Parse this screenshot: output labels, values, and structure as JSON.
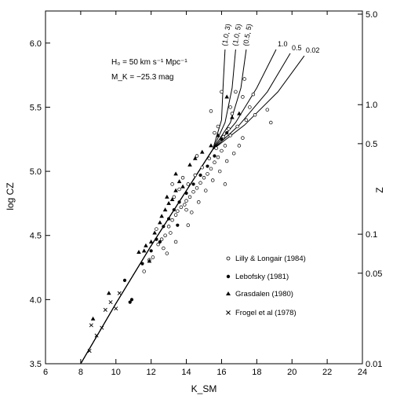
{
  "chart_data": {
    "type": "scatter",
    "title": "",
    "xlabel": "K_SM",
    "ylabel": "log CZ",
    "y2label": "Z",
    "xlim": [
      6,
      24
    ],
    "ylim": [
      3.5,
      6.25
    ],
    "x_ticks": [
      6,
      8,
      10,
      12,
      14,
      16,
      18,
      20,
      22,
      24
    ],
    "y_ticks": [
      3.5,
      4.0,
      4.5,
      5.0,
      5.5,
      6.0
    ],
    "y_tick_labels": [
      "3.5",
      "4.0",
      "4.5",
      "5.0",
      "5.5",
      "6.0"
    ],
    "z_ticks": [
      {
        "label": "5.0",
        "z": 5.0
      },
      {
        "label": "1.0",
        "z": 1.0
      },
      {
        "label": "0.5",
        "z": 0.5
      },
      {
        "label": "0.1",
        "z": 0.1
      },
      {
        "label": "0.05",
        "z": 0.05
      },
      {
        "label": "0.01",
        "z": 0.01
      }
    ],
    "grid": false,
    "legend_position": "lower-right",
    "annotations": [
      {
        "text": "H₀ = 50 km s⁻¹ Mpc⁻¹"
      },
      {
        "text": "M_K = −25.3 mag"
      }
    ],
    "legend": [
      {
        "marker": "open-circle",
        "label": "Lilly & Longair (1984)"
      },
      {
        "marker": "filled-circle",
        "label": "Lebofsky (1981)"
      },
      {
        "marker": "filled-triangle",
        "label": "Grasdalen (1980)"
      },
      {
        "marker": "cross",
        "label": "Frogel et al (1978)"
      }
    ],
    "models": [
      {
        "label": "(1.0, 3)",
        "points": [
          [
            8.0,
            3.5
          ],
          [
            10,
            3.97
          ],
          [
            12,
            4.42
          ],
          [
            14,
            4.85
          ],
          [
            15.5,
            5.17
          ],
          [
            16.0,
            5.4
          ],
          [
            16.1,
            5.7
          ],
          [
            16.2,
            5.95
          ]
        ]
      },
      {
        "label": "(1.0, 5)",
        "points": [
          [
            8.0,
            3.5
          ],
          [
            10,
            3.97
          ],
          [
            12,
            4.42
          ],
          [
            14,
            4.85
          ],
          [
            15.5,
            5.17
          ],
          [
            16.2,
            5.38
          ],
          [
            16.6,
            5.65
          ],
          [
            16.8,
            5.95
          ]
        ]
      },
      {
        "label": "(0.5, 5)",
        "points": [
          [
            8.0,
            3.5
          ],
          [
            10,
            3.97
          ],
          [
            12,
            4.42
          ],
          [
            14,
            4.85
          ],
          [
            15.5,
            5.17
          ],
          [
            16.5,
            5.38
          ],
          [
            17.1,
            5.65
          ],
          [
            17.4,
            5.95
          ]
        ]
      },
      {
        "label": "1.0",
        "points": [
          [
            8.0,
            3.5
          ],
          [
            10,
            3.97
          ],
          [
            12,
            4.42
          ],
          [
            14,
            4.85
          ],
          [
            15.5,
            5.17
          ],
          [
            16.8,
            5.38
          ],
          [
            18.0,
            5.65
          ],
          [
            19.1,
            5.95
          ]
        ]
      },
      {
        "label": "0.5",
        "points": [
          [
            8.0,
            3.5
          ],
          [
            10,
            3.97
          ],
          [
            12,
            4.42
          ],
          [
            14,
            4.85
          ],
          [
            15.5,
            5.17
          ],
          [
            17.0,
            5.36
          ],
          [
            18.6,
            5.62
          ],
          [
            19.9,
            5.92
          ]
        ]
      },
      {
        "label": "0.02",
        "points": [
          [
            8.0,
            3.5
          ],
          [
            10,
            3.97
          ],
          [
            12,
            4.42
          ],
          [
            14,
            4.85
          ],
          [
            15.5,
            5.17
          ],
          [
            17.3,
            5.36
          ],
          [
            19.2,
            5.62
          ],
          [
            20.7,
            5.9
          ]
        ]
      }
    ],
    "series": [
      {
        "name": "Lilly & Longair (1984)",
        "marker": "open-circle",
        "points": [
          [
            11.6,
            4.22
          ],
          [
            11.9,
            4.31
          ],
          [
            12.1,
            4.33
          ],
          [
            12.4,
            4.43
          ],
          [
            12.6,
            4.47
          ],
          [
            12.8,
            4.5
          ],
          [
            13.0,
            4.57
          ],
          [
            13.2,
            4.62
          ],
          [
            13.4,
            4.66
          ],
          [
            13.5,
            4.69
          ],
          [
            13.7,
            4.72
          ],
          [
            13.9,
            4.74
          ],
          [
            14.0,
            4.77
          ],
          [
            14.2,
            4.8
          ],
          [
            14.4,
            4.84
          ],
          [
            14.6,
            4.87
          ],
          [
            14.8,
            4.91
          ],
          [
            15.0,
            4.95
          ],
          [
            15.2,
            4.98
          ],
          [
            15.4,
            5.02
          ],
          [
            15.6,
            5.07
          ],
          [
            15.8,
            5.11
          ],
          [
            16.0,
            5.16
          ],
          [
            16.2,
            5.2
          ],
          [
            16.5,
            5.28
          ],
          [
            13.3,
            4.8
          ],
          [
            13.6,
            4.86
          ],
          [
            14.1,
            4.9
          ],
          [
            14.5,
            4.97
          ],
          [
            14.9,
            5.03
          ],
          [
            15.3,
            5.1
          ],
          [
            15.7,
            5.18
          ],
          [
            16.1,
            5.27
          ],
          [
            16.4,
            5.33
          ],
          [
            12.7,
            4.4
          ],
          [
            13.1,
            4.52
          ],
          [
            14.3,
            4.68
          ],
          [
            14.7,
            4.76
          ],
          [
            15.1,
            4.85
          ],
          [
            15.5,
            4.93
          ],
          [
            15.9,
            5.0
          ],
          [
            16.3,
            5.08
          ],
          [
            16.7,
            5.14
          ],
          [
            17.0,
            5.2
          ],
          [
            17.2,
            5.26
          ],
          [
            16.9,
            5.35
          ],
          [
            17.4,
            5.4
          ],
          [
            17.6,
            5.5
          ],
          [
            17.2,
            5.58
          ],
          [
            17.9,
            5.44
          ],
          [
            16.6,
            5.45
          ],
          [
            16.8,
            5.62
          ],
          [
            17.3,
            5.72
          ],
          [
            15.4,
            5.47
          ],
          [
            15.6,
            5.3
          ],
          [
            16.2,
            4.9
          ],
          [
            14.0,
            4.7
          ],
          [
            13.8,
            4.95
          ],
          [
            14.6,
            5.12
          ],
          [
            13.4,
            4.45
          ],
          [
            12.9,
            4.36
          ],
          [
            15.8,
            5.35
          ],
          [
            16.5,
            5.5
          ],
          [
            17.8,
            5.6
          ],
          [
            18.6,
            5.48
          ],
          [
            18.8,
            5.38
          ],
          [
            16.0,
            5.62
          ],
          [
            13.2,
            4.9
          ],
          [
            12.3,
            4.55
          ],
          [
            14.1,
            4.58
          ]
        ]
      },
      {
        "name": "Lebofsky (1981)",
        "marker": "filled-circle",
        "points": [
          [
            10.5,
            4.15
          ],
          [
            10.8,
            3.98
          ],
          [
            10.9,
            4.0
          ],
          [
            11.5,
            4.28
          ],
          [
            12.0,
            4.38
          ],
          [
            12.3,
            4.47
          ],
          [
            12.7,
            4.57
          ],
          [
            13.0,
            4.63
          ],
          [
            13.3,
            4.7
          ],
          [
            13.6,
            4.76
          ],
          [
            14.0,
            4.83
          ],
          [
            14.4,
            4.9
          ],
          [
            14.8,
            4.97
          ],
          [
            15.2,
            5.04
          ],
          [
            15.6,
            5.12
          ],
          [
            16.0,
            5.25
          ],
          [
            16.3,
            5.3
          ],
          [
            13.5,
            4.58
          ],
          [
            12.5,
            4.45
          ]
        ]
      },
      {
        "name": "Grasdalen (1980)",
        "marker": "filled-triangle",
        "points": [
          [
            8.7,
            3.85
          ],
          [
            9.6,
            4.05
          ],
          [
            11.3,
            4.37
          ],
          [
            11.6,
            4.38
          ],
          [
            11.7,
            4.42
          ],
          [
            12.0,
            4.45
          ],
          [
            12.2,
            4.52
          ],
          [
            12.5,
            4.6
          ],
          [
            12.8,
            4.7
          ],
          [
            13.0,
            4.75
          ],
          [
            13.2,
            4.78
          ],
          [
            13.4,
            4.85
          ],
          [
            13.6,
            4.92
          ],
          [
            14.2,
            5.05
          ],
          [
            14.5,
            5.1
          ],
          [
            14.9,
            5.15
          ],
          [
            12.9,
            4.8
          ],
          [
            13.4,
            4.98
          ],
          [
            15.4,
            5.2
          ],
          [
            15.8,
            5.28
          ],
          [
            16.3,
            5.58
          ],
          [
            16.6,
            5.42
          ],
          [
            17.0,
            5.45
          ],
          [
            11.9,
            4.3
          ],
          [
            13.8,
            4.88
          ],
          [
            12.6,
            4.65
          ]
        ]
      },
      {
        "name": "Frogel et al (1978)",
        "marker": "cross",
        "points": [
          [
            8.5,
            3.6
          ],
          [
            8.6,
            3.8
          ],
          [
            8.9,
            3.72
          ],
          [
            9.2,
            3.78
          ],
          [
            9.4,
            3.92
          ],
          [
            9.7,
            3.98
          ],
          [
            10.2,
            4.05
          ],
          [
            10.0,
            3.93
          ]
        ]
      }
    ]
  }
}
